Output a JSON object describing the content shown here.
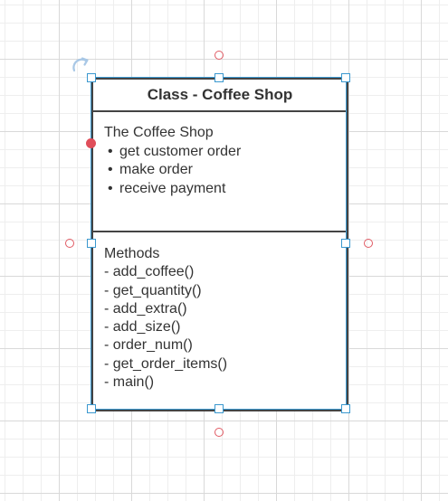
{
  "diagram": {
    "class_title": "Class - Coffee Shop",
    "attributes": {
      "heading": "The Coffee Shop",
      "items": [
        "get customer order",
        "make order",
        "receive payment"
      ]
    },
    "methods": {
      "heading": "Methods",
      "items": [
        "- add_coffee()",
        "- get_quantity()",
        "- add_extra()",
        "- add_size()",
        "- order_num()",
        "- get_order_items()",
        "- main()"
      ]
    }
  },
  "colors": {
    "selection": "#3a98cf",
    "connection_point": "#e05a63",
    "border": "#444444",
    "text": "#333333"
  },
  "icons": {
    "rotate": "rotate-icon"
  }
}
